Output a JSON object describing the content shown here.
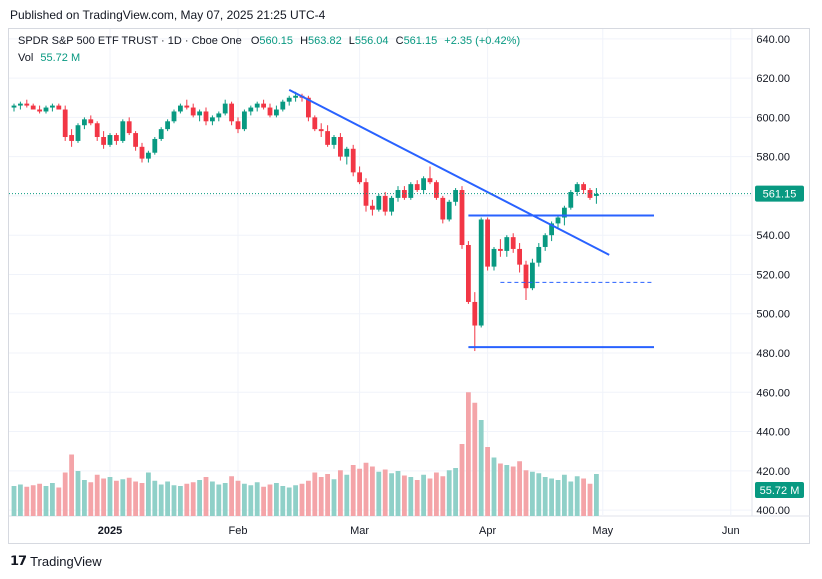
{
  "header": {
    "published": "Published on TradingView.com, May 07, 2025 21:25 UTC-4"
  },
  "legend": {
    "symbol": "SPDR S&P 500 ETF TRUST · 1D · Cboe One",
    "o_label": "O",
    "o": "560.15",
    "h_label": "H",
    "h": "563.82",
    "l_label": "L",
    "l": "556.04",
    "c_label": "C",
    "c": "561.15",
    "change": "+2.35 (+0.42%)",
    "vol_label": "Vol",
    "vol": "55.72 M"
  },
  "footer": {
    "brand": "TradingView"
  },
  "colors": {
    "up": "#089981",
    "down": "#f23645",
    "vol_up": "#8fd0c8",
    "vol_down": "#f4a4a8",
    "trend": "#2962ff",
    "grid": "#f0f3fa"
  },
  "chart_data": {
    "type": "candlestick",
    "title": "SPDR S&P 500 ETF TRUST",
    "interval": "1D",
    "exchange": "Cboe One",
    "y_ticks": [
      "640.00",
      "620.00",
      "600.00",
      "580.00",
      "560.00",
      "540.00",
      "520.00",
      "500.00",
      "480.00",
      "460.00",
      "440.00",
      "420.00",
      "400.00"
    ],
    "x_ticks": [
      "2025",
      "Feb",
      "Mar",
      "Apr",
      "May",
      "Jun"
    ],
    "ylim": [
      397,
      645
    ],
    "last_price_label": "561.15",
    "volume_label": "55.72 M",
    "candles_ohlc": [
      [
        605,
        607,
        603,
        606
      ],
      [
        606,
        608,
        604,
        607
      ],
      [
        607,
        609,
        605,
        606
      ],
      [
        606,
        607,
        604,
        604
      ],
      [
        604,
        606,
        602,
        603
      ],
      [
        603,
        606,
        602,
        605
      ],
      [
        605,
        607,
        603,
        606
      ],
      [
        606,
        607,
        604,
        604
      ],
      [
        604,
        606,
        588,
        590
      ],
      [
        591,
        594,
        585,
        588
      ],
      [
        588,
        597,
        587,
        596
      ],
      [
        596,
        600,
        594,
        599
      ],
      [
        599,
        601,
        596,
        597
      ],
      [
        597,
        598,
        588,
        590
      ],
      [
        590,
        593,
        584,
        586
      ],
      [
        586,
        592,
        585,
        591
      ],
      [
        591,
        592,
        586,
        588
      ],
      [
        588,
        599,
        587,
        598
      ],
      [
        598,
        600,
        591,
        592
      ],
      [
        592,
        593,
        583,
        585
      ],
      [
        585,
        587,
        577,
        579
      ],
      [
        579,
        583,
        577,
        582
      ],
      [
        582,
        590,
        581,
        589
      ],
      [
        589,
        595,
        588,
        594
      ],
      [
        594,
        599,
        593,
        598
      ],
      [
        598,
        604,
        597,
        603
      ],
      [
        603,
        607,
        602,
        606
      ],
      [
        606,
        609,
        604,
        605
      ],
      [
        605,
        607,
        600,
        601
      ],
      [
        601,
        604,
        598,
        603
      ],
      [
        603,
        605,
        596,
        598
      ],
      [
        598,
        601,
        596,
        600
      ],
      [
        600,
        603,
        598,
        602
      ],
      [
        602,
        609,
        601,
        607
      ],
      [
        607,
        608,
        596,
        598
      ],
      [
        598,
        600,
        592,
        594
      ],
      [
        594,
        604,
        593,
        603
      ],
      [
        603,
        606,
        601,
        605
      ],
      [
        605,
        608,
        603,
        607
      ],
      [
        607,
        609,
        604,
        605
      ],
      [
        605,
        607,
        600,
        601
      ],
      [
        601,
        606,
        600,
        604
      ],
      [
        604,
        609,
        603,
        608
      ],
      [
        608,
        611,
        606,
        610
      ],
      [
        610,
        613,
        608,
        611
      ],
      [
        611,
        612,
        608,
        610
      ],
      [
        610,
        611,
        598,
        600
      ],
      [
        600,
        601,
        593,
        594
      ],
      [
        594,
        597,
        590,
        593
      ],
      [
        593,
        596,
        585,
        586
      ],
      [
        586,
        591,
        584,
        590
      ],
      [
        590,
        592,
        578,
        580
      ],
      [
        580,
        585,
        576,
        584
      ],
      [
        584,
        586,
        570,
        572
      ],
      [
        572,
        575,
        566,
        567
      ],
      [
        567,
        569,
        552,
        555
      ],
      [
        555,
        558,
        550,
        553
      ],
      [
        553,
        561,
        552,
        560
      ],
      [
        560,
        562,
        550,
        552
      ],
      [
        552,
        560,
        550,
        559
      ],
      [
        559,
        565,
        557,
        563
      ],
      [
        563,
        565,
        558,
        559
      ],
      [
        559,
        567,
        558,
        566
      ],
      [
        566,
        568,
        562,
        563
      ],
      [
        563,
        570,
        561,
        569
      ],
      [
        569,
        575,
        566,
        567
      ],
      [
        567,
        568,
        558,
        559
      ],
      [
        559,
        560,
        546,
        548
      ],
      [
        548,
        558,
        547,
        557
      ],
      [
        557,
        564,
        555,
        563
      ],
      [
        563,
        565,
        533,
        535
      ],
      [
        535,
        537,
        505,
        506
      ],
      [
        506,
        511,
        481,
        494
      ],
      [
        494,
        549,
        493,
        548
      ],
      [
        548,
        549,
        522,
        524
      ],
      [
        524,
        534,
        522,
        533
      ],
      [
        533,
        538,
        529,
        532
      ],
      [
        532,
        540,
        529,
        539
      ],
      [
        539,
        541,
        531,
        533
      ],
      [
        533,
        536,
        521,
        525
      ],
      [
        525,
        527,
        507,
        513
      ],
      [
        513,
        528,
        512,
        526
      ],
      [
        526,
        536,
        524,
        534
      ],
      [
        534,
        541,
        532,
        540
      ],
      [
        540,
        547,
        537,
        546
      ],
      [
        546,
        550,
        543,
        549
      ],
      [
        549,
        555,
        545,
        554
      ],
      [
        554,
        563,
        553,
        562
      ],
      [
        562,
        567,
        560,
        566
      ],
      [
        566,
        567,
        561,
        563
      ],
      [
        563,
        564,
        558,
        559
      ],
      [
        560,
        564,
        556,
        561
      ]
    ],
    "volume_millions": [
      40,
      42,
      39,
      41,
      43,
      40,
      44,
      38,
      58,
      82,
      60,
      48,
      45,
      55,
      50,
      52,
      47,
      49,
      51,
      46,
      44,
      58,
      47,
      42,
      46,
      41,
      40,
      43,
      45,
      48,
      52,
      46,
      42,
      44,
      53,
      47,
      43,
      41,
      45,
      39,
      42,
      44,
      40,
      38,
      41,
      43,
      47,
      58,
      52,
      56,
      49,
      61,
      55,
      68,
      63,
      71,
      66,
      59,
      62,
      57,
      60,
      54,
      52,
      48,
      55,
      50,
      58,
      53,
      61,
      64,
      96,
      165,
      151,
      128,
      92,
      78,
      70,
      68,
      66,
      73,
      61,
      59,
      57,
      52,
      50,
      48,
      55,
      46,
      53,
      50,
      43,
      56
    ],
    "trendline": {
      "start": {
        "index": 43,
        "price": 614
      },
      "end": {
        "index": 93,
        "price": 530
      }
    },
    "horizontal_levels": [
      {
        "price": 550,
        "style": "solid",
        "from_index": 71,
        "to_index": 100
      },
      {
        "price": 516,
        "style": "dashed",
        "from_index": 76,
        "to_index": 100
      },
      {
        "price": 483,
        "style": "solid",
        "from_index": 71,
        "to_index": 100
      }
    ]
  }
}
